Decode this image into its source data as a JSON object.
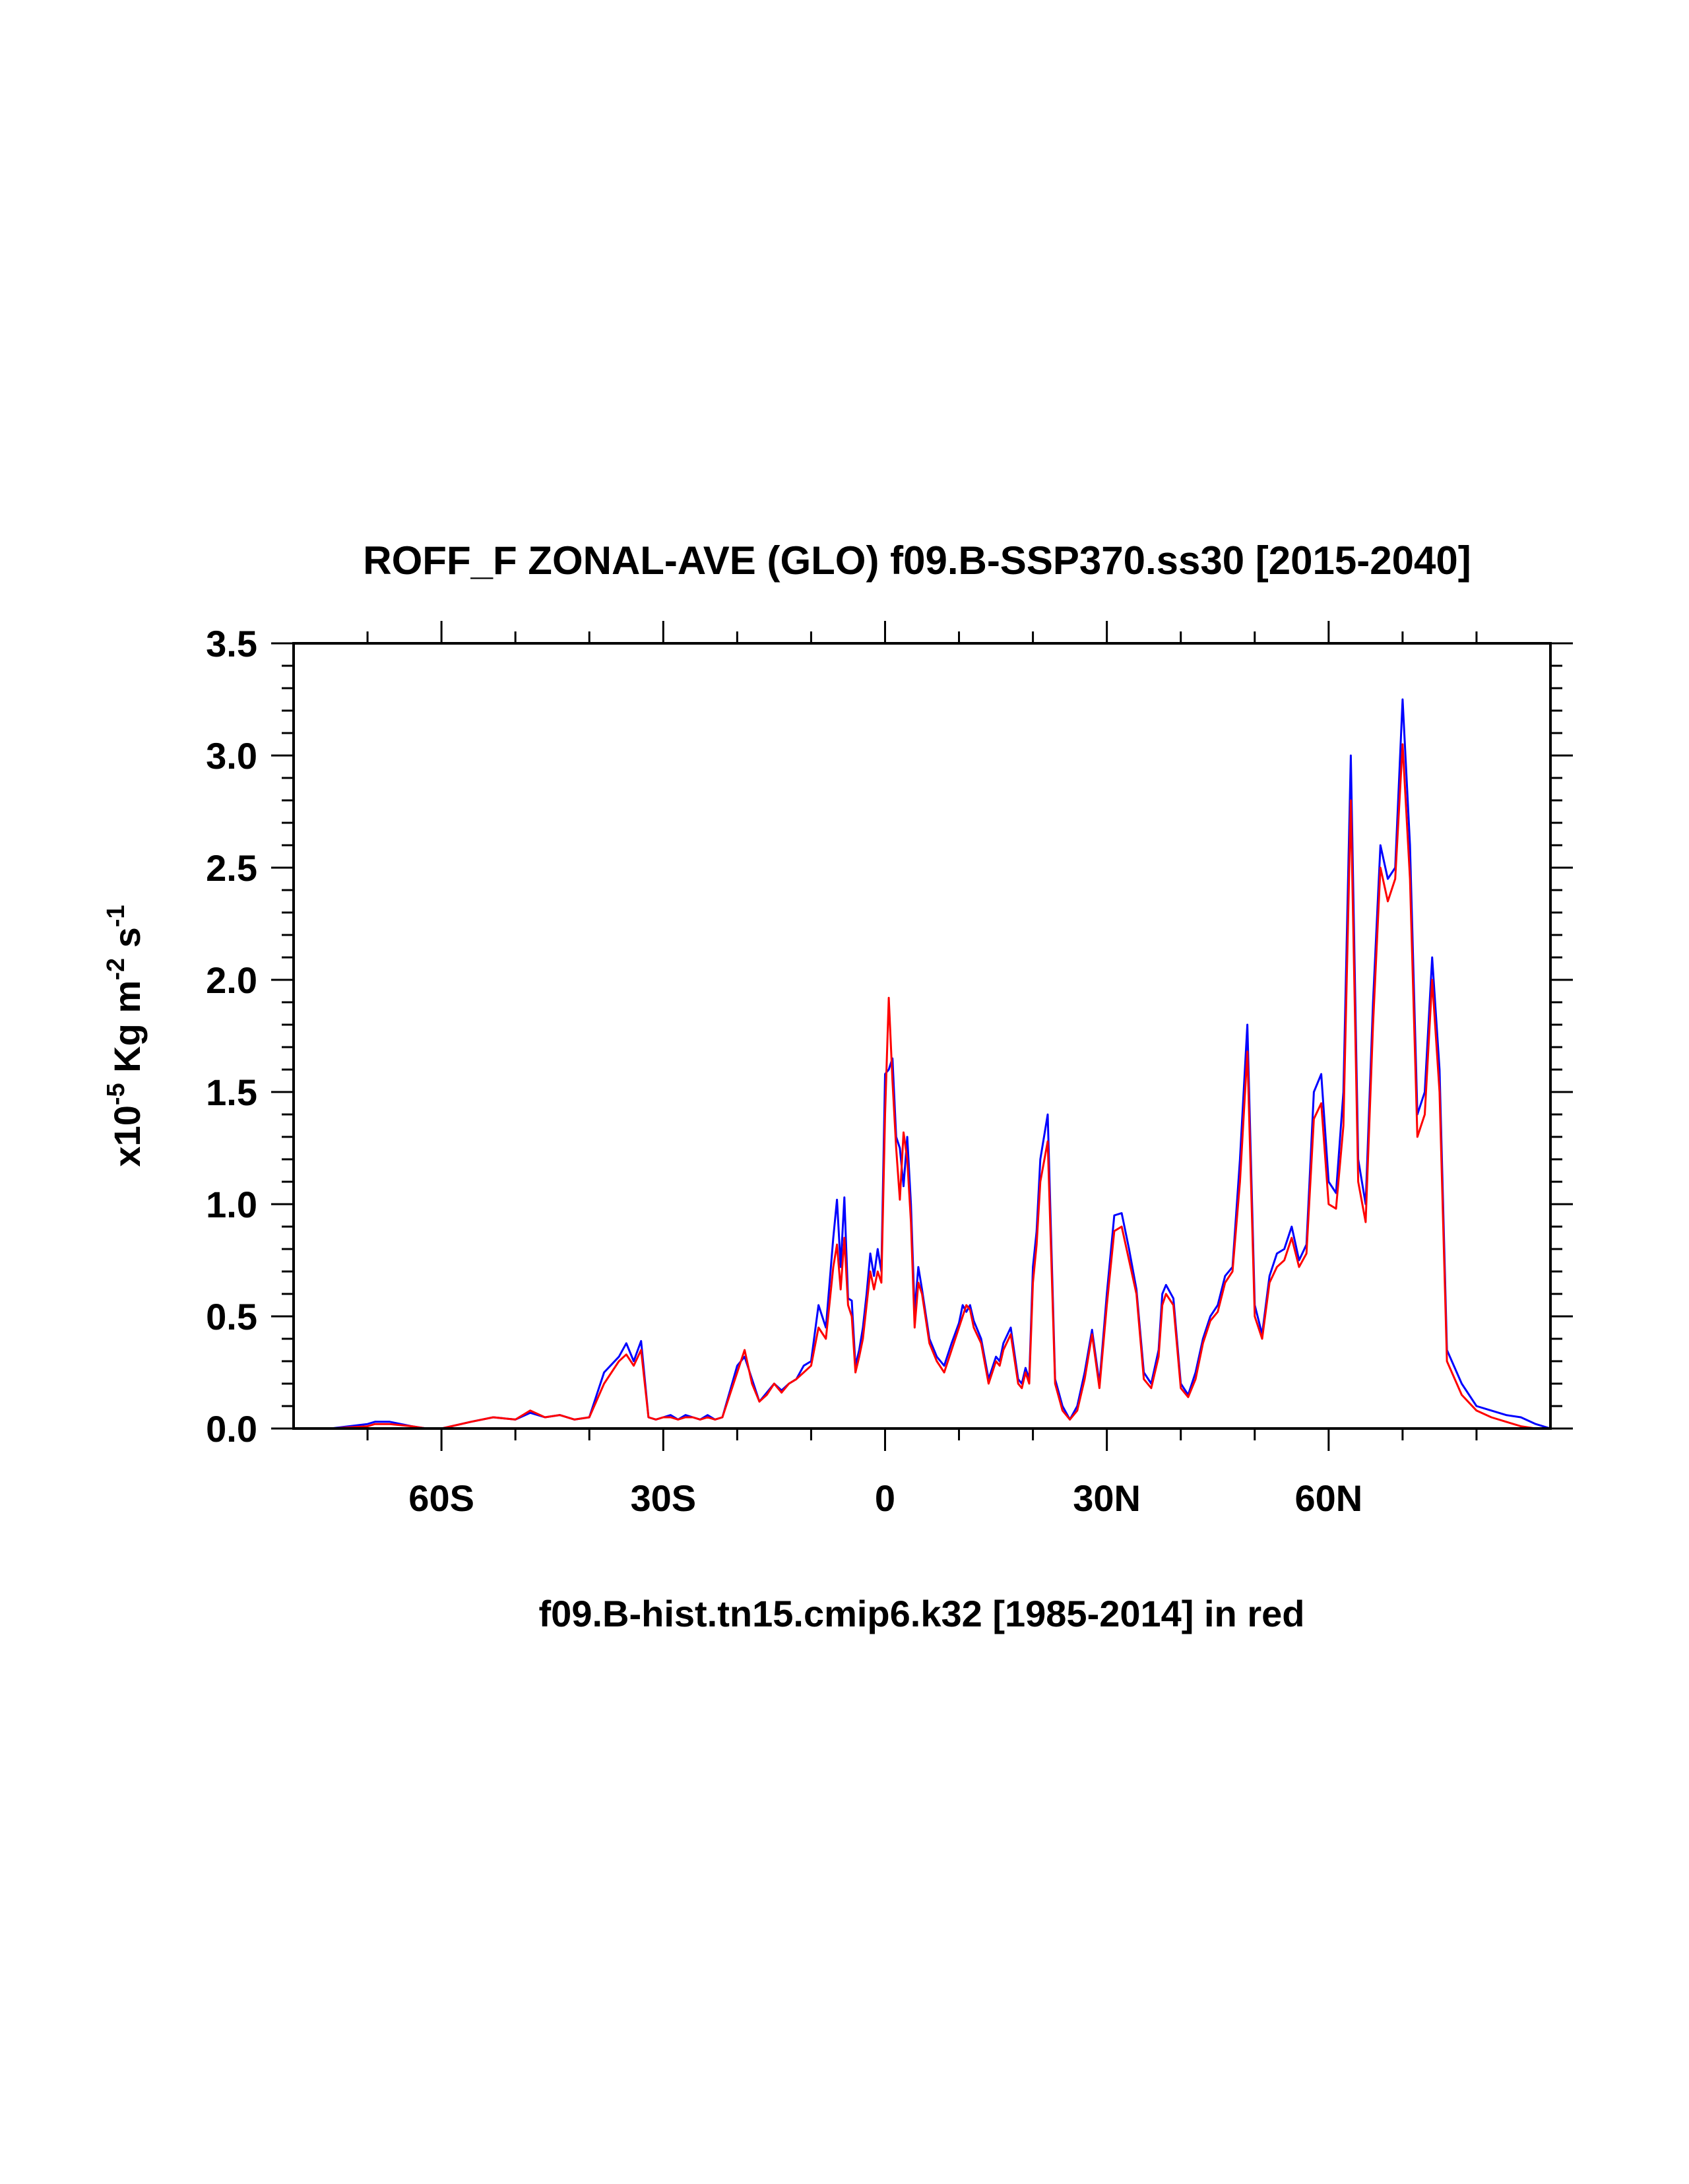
{
  "chart_data": {
    "type": "line",
    "title": "ROFF_F ZONAL-AVE (GLO) f09.B-SSP370.ss30 [2015-2040]",
    "xlabel": "f09.B-hist.tn15.cmip6.k32 [1985-2014] in red",
    "ylabel": {
      "base": "x10",
      "exp1": "-5",
      "mid": " Kg m",
      "exp2": "-2",
      "mid2": " s",
      "exp3": "-1"
    },
    "xlim": [
      -80,
      90
    ],
    "ylim": [
      0,
      3.5
    ],
    "x_ticks": [
      {
        "value": -60,
        "label": "60S"
      },
      {
        "value": -30,
        "label": "30S"
      },
      {
        "value": 0,
        "label": "0"
      },
      {
        "value": 30,
        "label": "30N"
      },
      {
        "value": 60,
        "label": "60N"
      }
    ],
    "y_ticks": [
      {
        "value": 0.0,
        "label": "0.0"
      },
      {
        "value": 0.5,
        "label": "0.5"
      },
      {
        "value": 1.0,
        "label": "1.0"
      },
      {
        "value": 1.5,
        "label": "1.5"
      },
      {
        "value": 2.0,
        "label": "2.0"
      },
      {
        "value": 2.5,
        "label": "2.5"
      },
      {
        "value": 3.0,
        "label": "3.0"
      },
      {
        "value": 3.5,
        "label": "3.5"
      }
    ],
    "series": [
      {
        "color": "#0000ff",
        "x": [
          -80,
          -75,
          -70,
          -69,
          -67,
          -64,
          -62,
          -60,
          -56,
          -53,
          -50,
          -48,
          -46,
          -44,
          -42,
          -40,
          -38,
          -36,
          -35,
          -34,
          -33,
          -32,
          -31,
          -30,
          -29,
          -28,
          -27,
          -26,
          -25,
          -24,
          -23,
          -22,
          -20,
          -19,
          -18,
          -17,
          -16,
          -15,
          -14,
          -13,
          -12,
          -11,
          -10,
          -9,
          -8,
          -7,
          -6.5,
          -6,
          -5.5,
          -5,
          -4.5,
          -4,
          -3.5,
          -3,
          -2.5,
          -2,
          -1.5,
          -1,
          -0.5,
          0,
          0.5,
          1,
          1.5,
          2,
          2.5,
          3,
          3.5,
          4,
          4.5,
          5,
          6,
          7,
          8,
          9,
          10,
          10.5,
          11,
          11.5,
          12,
          13,
          14,
          15,
          15.5,
          16,
          17,
          18,
          18.5,
          19,
          19.5,
          20,
          20.5,
          21,
          22,
          23,
          24,
          25,
          26,
          27,
          28,
          29,
          30,
          31,
          32,
          33,
          34,
          35,
          36,
          37,
          37.5,
          38,
          39,
          40,
          41,
          42,
          43,
          44,
          45,
          46,
          47,
          48,
          49,
          50,
          51,
          52,
          53,
          54,
          55,
          56,
          57,
          58,
          59,
          60,
          61,
          62,
          63,
          64,
          65,
          66,
          67,
          68,
          69,
          70,
          71,
          72,
          73,
          74,
          75,
          76,
          78,
          80,
          82,
          84,
          86,
          88,
          90
        ],
        "y": [
          0,
          0,
          0.02,
          0.03,
          0.03,
          0.01,
          0,
          0,
          0.03,
          0.05,
          0.04,
          0.07,
          0.05,
          0.06,
          0.04,
          0.05,
          0.25,
          0.32,
          0.38,
          0.3,
          0.39,
          0.05,
          0.04,
          0.05,
          0.06,
          0.04,
          0.06,
          0.05,
          0.04,
          0.06,
          0.04,
          0.05,
          0.28,
          0.32,
          0.22,
          0.12,
          0.16,
          0.2,
          0.17,
          0.2,
          0.22,
          0.28,
          0.3,
          0.55,
          0.45,
          0.85,
          1.02,
          0.72,
          1.03,
          0.58,
          0.57,
          0.28,
          0.35,
          0.45,
          0.6,
          0.78,
          0.68,
          0.8,
          0.7,
          1.58,
          1.6,
          1.65,
          1.3,
          1.25,
          1.08,
          1.3,
          1.0,
          0.52,
          0.72,
          0.62,
          0.4,
          0.32,
          0.28,
          0.38,
          0.47,
          0.55,
          0.52,
          0.55,
          0.48,
          0.4,
          0.22,
          0.32,
          0.3,
          0.38,
          0.45,
          0.22,
          0.2,
          0.27,
          0.22,
          0.72,
          0.88,
          1.2,
          1.4,
          0.22,
          0.1,
          0.04,
          0.1,
          0.25,
          0.44,
          0.2,
          0.6,
          0.95,
          0.96,
          0.8,
          0.62,
          0.25,
          0.2,
          0.35,
          0.6,
          0.64,
          0.58,
          0.2,
          0.15,
          0.25,
          0.4,
          0.5,
          0.55,
          0.68,
          0.72,
          1.2,
          1.8,
          0.55,
          0.42,
          0.68,
          0.78,
          0.8,
          0.9,
          0.75,
          0.82,
          1.5,
          1.58,
          1.1,
          1.05,
          1.5,
          3.0,
          1.2,
          1.0,
          1.9,
          2.6,
          2.45,
          2.5,
          3.25,
          2.6,
          1.4,
          1.5,
          2.1,
          1.6,
          0.35,
          0.2,
          0.1,
          0.08,
          0.06,
          0.05,
          0.02,
          0
        ],
        "label": ""
      },
      {
        "color": "#ff0000",
        "x": [
          -80,
          -75,
          -70,
          -69,
          -67,
          -64,
          -62,
          -60,
          -56,
          -53,
          -50,
          -48,
          -46,
          -44,
          -42,
          -40,
          -38,
          -36,
          -35,
          -34,
          -33,
          -32,
          -31,
          -30,
          -29,
          -28,
          -27,
          -26,
          -25,
          -24,
          -23,
          -22,
          -20,
          -19,
          -18,
          -17,
          -16,
          -15,
          -14,
          -13,
          -12,
          -11,
          -10,
          -9,
          -8,
          -7,
          -6.5,
          -6,
          -5.5,
          -5,
          -4.5,
          -4,
          -3.5,
          -3,
          -2.5,
          -2,
          -1.5,
          -1,
          -0.5,
          0,
          0.5,
          1,
          1.5,
          2,
          2.5,
          3,
          3.5,
          4,
          4.5,
          5,
          6,
          7,
          8,
          9,
          10,
          10.5,
          11,
          11.5,
          12,
          13,
          14,
          15,
          15.5,
          16,
          17,
          18,
          18.5,
          19,
          19.5,
          20,
          20.5,
          21,
          22,
          23,
          24,
          25,
          26,
          27,
          28,
          29,
          30,
          31,
          32,
          33,
          34,
          35,
          36,
          37,
          37.5,
          38,
          39,
          40,
          41,
          42,
          43,
          44,
          45,
          46,
          47,
          48,
          49,
          50,
          51,
          52,
          53,
          54,
          55,
          56,
          57,
          58,
          59,
          60,
          61,
          62,
          63,
          64,
          65,
          66,
          67,
          68,
          69,
          70,
          71,
          72,
          73,
          74,
          75,
          76,
          78,
          80,
          82,
          84,
          86,
          88,
          90
        ],
        "y": [
          0,
          0,
          0.01,
          0.02,
          0.02,
          0.01,
          0,
          0,
          0.03,
          0.05,
          0.04,
          0.08,
          0.05,
          0.06,
          0.04,
          0.05,
          0.2,
          0.3,
          0.33,
          0.28,
          0.35,
          0.05,
          0.04,
          0.05,
          0.05,
          0.04,
          0.05,
          0.05,
          0.04,
          0.05,
          0.04,
          0.05,
          0.25,
          0.35,
          0.2,
          0.12,
          0.15,
          0.2,
          0.16,
          0.2,
          0.22,
          0.25,
          0.28,
          0.45,
          0.4,
          0.72,
          0.82,
          0.62,
          0.85,
          0.55,
          0.5,
          0.25,
          0.32,
          0.4,
          0.55,
          0.7,
          0.62,
          0.7,
          0.65,
          1.4,
          1.92,
          1.55,
          1.25,
          1.02,
          1.32,
          1.2,
          0.92,
          0.45,
          0.65,
          0.6,
          0.38,
          0.3,
          0.25,
          0.35,
          0.45,
          0.5,
          0.55,
          0.53,
          0.45,
          0.38,
          0.2,
          0.3,
          0.28,
          0.35,
          0.42,
          0.2,
          0.18,
          0.25,
          0.2,
          0.65,
          0.82,
          1.1,
          1.28,
          0.2,
          0.08,
          0.04,
          0.08,
          0.22,
          0.42,
          0.18,
          0.55,
          0.88,
          0.9,
          0.75,
          0.6,
          0.22,
          0.18,
          0.32,
          0.55,
          0.6,
          0.55,
          0.18,
          0.14,
          0.22,
          0.38,
          0.48,
          0.52,
          0.65,
          0.7,
          1.1,
          1.68,
          0.5,
          0.4,
          0.65,
          0.72,
          0.75,
          0.85,
          0.72,
          0.78,
          1.38,
          1.45,
          1.0,
          0.98,
          1.35,
          2.8,
          1.1,
          0.92,
          1.8,
          2.5,
          2.35,
          2.45,
          3.05,
          2.45,
          1.3,
          1.4,
          2.0,
          1.5,
          0.3,
          0.15,
          0.08,
          0.05,
          0.03,
          0.01,
          0,
          0
        ],
        "label": ""
      }
    ]
  }
}
